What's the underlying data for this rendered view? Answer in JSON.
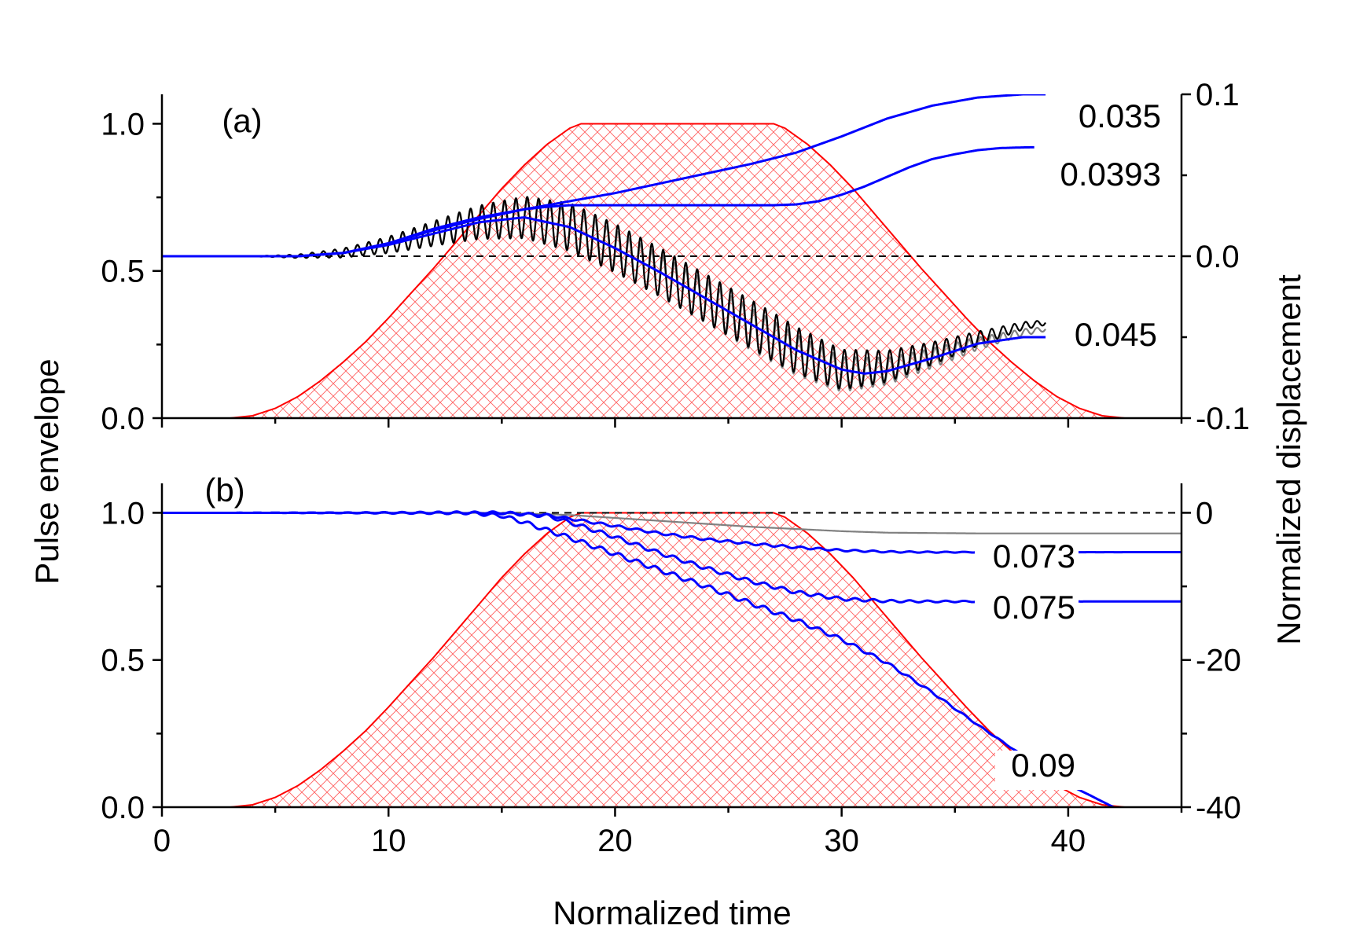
{
  "chart_data": [
    {
      "type": "line",
      "panel_label": "(a)",
      "xlim": [
        0,
        45
      ],
      "ylim_left": [
        0,
        1.1
      ],
      "ylim_right": [
        -0.1,
        0.1
      ],
      "x_ticks": [
        0,
        10,
        20,
        30,
        40
      ],
      "left_ticks": [
        "0.0",
        "0.5",
        "1.0"
      ],
      "left_tick_values": [
        0.0,
        0.5,
        1.0
      ],
      "right_ticks": [
        "-0.1",
        "0.0",
        "0.1"
      ],
      "right_tick_values": [
        -0.1,
        0.0,
        0.1
      ],
      "reference_line": {
        "axis": "right",
        "value": 0.0,
        "style": "dashed"
      },
      "envelope": {
        "name": "Pulse envelope",
        "axis": "left",
        "color": "#ff0000",
        "fill": "crosshatch",
        "x": [
          0,
          3,
          4,
          5,
          6,
          7,
          8,
          9,
          10,
          11,
          12,
          13,
          14,
          15,
          16,
          17,
          18,
          18.5,
          27,
          27.5,
          28.5,
          29.5,
          30.5,
          31.5,
          32.5,
          33.5,
          34.5,
          35.5,
          36.5,
          37.5,
          38.5,
          39.5,
          40.5,
          41.5,
          42.5,
          45
        ],
        "y": [
          0,
          0,
          0.008,
          0.033,
          0.073,
          0.127,
          0.19,
          0.26,
          0.34,
          0.425,
          0.51,
          0.6,
          0.69,
          0.78,
          0.86,
          0.93,
          0.985,
          1.0,
          1.0,
          0.985,
          0.93,
          0.86,
          0.78,
          0.69,
          0.6,
          0.51,
          0.425,
          0.34,
          0.26,
          0.19,
          0.127,
          0.073,
          0.033,
          0.008,
          0,
          0
        ]
      },
      "annotations": [
        "0.035",
        "0.0393",
        "0.045"
      ],
      "series": [
        {
          "name": "0.035",
          "axis": "right",
          "color": "#0000ff",
          "x": [
            0,
            6,
            8,
            10,
            12,
            14,
            16,
            18,
            20,
            22,
            24,
            26,
            28,
            30,
            32,
            34,
            36,
            38,
            39
          ],
          "y": [
            0,
            0,
            0.002,
            0.008,
            0.017,
            0.024,
            0.029,
            0.034,
            0.039,
            0.045,
            0.051,
            0.057,
            0.064,
            0.074,
            0.085,
            0.093,
            0.098,
            0.1,
            0.1
          ]
        },
        {
          "name": "0.0393",
          "axis": "right",
          "color": "#0000ff",
          "x": [
            0,
            6,
            8,
            10,
            12,
            14,
            16,
            17,
            18,
            20,
            22,
            24,
            26,
            27,
            28,
            29,
            30,
            31,
            32,
            33,
            34,
            35,
            36,
            37,
            38,
            38.5
          ],
          "y": [
            0,
            0,
            0.002,
            0.008,
            0.016,
            0.023,
            0.029,
            0.0305,
            0.0315,
            0.0315,
            0.0315,
            0.0315,
            0.0315,
            0.0315,
            0.032,
            0.034,
            0.038,
            0.043,
            0.049,
            0.055,
            0.06,
            0.063,
            0.0655,
            0.0668,
            0.0672,
            0.0673
          ]
        },
        {
          "name": "0.045",
          "axis": "right",
          "color": "#0000ff",
          "x": [
            0,
            6,
            8,
            10,
            12,
            14,
            16,
            18,
            20,
            22,
            24,
            26,
            28,
            30,
            31,
            32,
            34,
            36,
            38,
            39
          ],
          "y": [
            0,
            0,
            0.002,
            0.007,
            0.014,
            0.021,
            0.024,
            0.018,
            0.005,
            -0.01,
            -0.026,
            -0.042,
            -0.058,
            -0.07,
            -0.0725,
            -0.071,
            -0.063,
            -0.054,
            -0.05,
            -0.05
          ]
        },
        {
          "name": "oscillating (0.045)",
          "axis": "right",
          "color": "#000000",
          "oscillation": {
            "period": 0.5,
            "amplitude_max": 0.015
          },
          "x": [
            0,
            6,
            8,
            10,
            12,
            14,
            16,
            18,
            20,
            22,
            24,
            26,
            28,
            30,
            32,
            34,
            36,
            38,
            39
          ],
          "y": [
            0,
            0,
            0.002,
            0.007,
            0.014,
            0.021,
            0.024,
            0.018,
            0.005,
            -0.01,
            -0.026,
            -0.042,
            -0.058,
            -0.07,
            -0.068,
            -0.06,
            -0.051,
            -0.043,
            -0.041
          ]
        },
        {
          "name": "oscillating gray (0.045)",
          "axis": "right",
          "color": "#808080",
          "oscillation": {
            "period": 0.5,
            "amplitude_max": 0.013
          },
          "x": [
            0,
            6,
            8,
            10,
            12,
            14,
            16,
            18,
            20,
            22,
            24,
            26,
            28,
            30,
            32,
            34,
            36,
            38,
            39
          ],
          "y": [
            0,
            0,
            0.002,
            0.007,
            0.014,
            0.021,
            0.024,
            0.017,
            0.003,
            -0.012,
            -0.028,
            -0.045,
            -0.061,
            -0.073,
            -0.071,
            -0.063,
            -0.054,
            -0.047,
            -0.045
          ]
        }
      ]
    },
    {
      "type": "line",
      "panel_label": "(b)",
      "xlim": [
        0,
        45
      ],
      "ylim_left": [
        0,
        1.1
      ],
      "ylim_right": [
        -40,
        4
      ],
      "x_ticks": [
        0,
        10,
        20,
        30,
        40
      ],
      "x_tick_labels": [
        "0",
        "10",
        "20",
        "30",
        "40"
      ],
      "xlabel": "Normalized time",
      "ylabel_left": "Pulse envelope",
      "ylabel_right": "Normalized displacement",
      "left_ticks": [
        "0.0",
        "0.5",
        "1.0"
      ],
      "left_tick_values": [
        0.0,
        0.5,
        1.0
      ],
      "right_ticks": [
        "-40",
        "-20",
        "0"
      ],
      "right_tick_values": [
        -40,
        -20,
        0
      ],
      "reference_line": {
        "axis": "right",
        "value": 0,
        "style": "dashed"
      },
      "envelope": {
        "name": "Pulse envelope",
        "axis": "left",
        "color": "#ff0000",
        "fill": "crosshatch",
        "x": [
          0,
          3,
          4,
          5,
          6,
          7,
          8,
          9,
          10,
          11,
          12,
          13,
          14,
          15,
          16,
          17,
          18,
          18.5,
          27,
          27.5,
          28.5,
          29.5,
          30.5,
          31.5,
          32.5,
          33.5,
          34.5,
          35.5,
          36.5,
          37.5,
          38.5,
          39.5,
          40.5,
          41.5,
          42.5,
          45
        ],
        "y": [
          0,
          0,
          0.008,
          0.033,
          0.073,
          0.127,
          0.19,
          0.26,
          0.34,
          0.425,
          0.51,
          0.6,
          0.69,
          0.78,
          0.86,
          0.93,
          0.985,
          1.0,
          1.0,
          0.985,
          0.93,
          0.86,
          0.78,
          0.69,
          0.6,
          0.51,
          0.425,
          0.34,
          0.26,
          0.19,
          0.127,
          0.073,
          0.033,
          0.008,
          0,
          0
        ]
      },
      "annotations": [
        "0.073",
        "0.075",
        "0.09"
      ],
      "series": [
        {
          "name": "gray",
          "axis": "right",
          "color": "#808080",
          "x": [
            0,
            14,
            16,
            18,
            20,
            22,
            24,
            26,
            28,
            30,
            32,
            36,
            40,
            45
          ],
          "y": [
            0,
            0,
            -0.1,
            -0.3,
            -0.7,
            -1.1,
            -1.5,
            -1.9,
            -2.2,
            -2.5,
            -2.7,
            -2.8,
            -2.8,
            -2.8
          ]
        },
        {
          "name": "0.073",
          "axis": "right",
          "color": "#0000ff",
          "wiggle": 0.15,
          "x": [
            0,
            15,
            17,
            18,
            20,
            22,
            24,
            26,
            28,
            30,
            32,
            34,
            36,
            40,
            45
          ],
          "y": [
            0,
            0,
            -0.3,
            -0.8,
            -1.8,
            -2.8,
            -3.6,
            -4.2,
            -4.7,
            -5.1,
            -5.3,
            -5.35,
            -5.35,
            -5.35,
            -5.35
          ]
        },
        {
          "name": "0.075",
          "axis": "right",
          "color": "#0000ff",
          "wiggle": 0.25,
          "x": [
            0,
            15,
            17,
            18,
            20,
            22,
            24,
            26,
            28,
            30,
            32,
            34,
            36,
            40,
            45
          ],
          "y": [
            0,
            0,
            -0.4,
            -1.3,
            -3.3,
            -5.5,
            -7.5,
            -9.3,
            -10.8,
            -11.7,
            -12.0,
            -12.05,
            -12.05,
            -12.05,
            -12.05
          ]
        },
        {
          "name": "0.09",
          "axis": "right",
          "color": "#0000ff",
          "wiggle": 0.3,
          "x": [
            0,
            13.5,
            15,
            16,
            18,
            20,
            22,
            24,
            26,
            28,
            30,
            32,
            34,
            36,
            38,
            40,
            42
          ],
          "y": [
            0,
            0,
            -0.4,
            -1.3,
            -3.4,
            -5.6,
            -7.8,
            -10.0,
            -12.3,
            -14.6,
            -17.2,
            -20.4,
            -24.4,
            -28.8,
            -33.0,
            -36.9,
            -40.0
          ]
        }
      ]
    }
  ]
}
